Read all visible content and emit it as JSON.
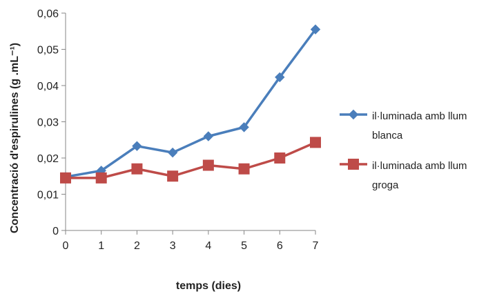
{
  "chart_data": {
    "type": "line",
    "title": "",
    "xlabel": "temps (dies)",
    "ylabel": "Concentració d'espirulines (g .mL⁻¹)",
    "x": [
      0,
      1,
      2,
      3,
      4,
      5,
      6,
      7
    ],
    "x_tick_labels": [
      "0",
      "1",
      "2",
      "3",
      "4",
      "5",
      "6",
      "7"
    ],
    "ylim": [
      0,
      0.06
    ],
    "y_ticks": [
      0,
      0.01,
      0.02,
      0.03,
      0.04,
      0.05,
      0.06
    ],
    "y_tick_labels": [
      "0",
      "0,01",
      "0,02",
      "0,03",
      "0,04",
      "0,05",
      "0,06"
    ],
    "grid": false,
    "legend_position": "right",
    "series": [
      {
        "name_lines": [
          "il·luminada amb llum",
          "blanca"
        ],
        "color": "#4A7EBB",
        "marker": "diamond",
        "values": [
          0.0148,
          0.0165,
          0.0233,
          0.0215,
          0.026,
          0.0285,
          0.0423,
          0.0555
        ]
      },
      {
        "name_lines": [
          "il·luminada amb llum",
          "groga"
        ],
        "color": "#BE4B48",
        "marker": "square",
        "values": [
          0.0145,
          0.0145,
          0.017,
          0.015,
          0.018,
          0.017,
          0.02,
          0.0243
        ]
      }
    ]
  }
}
